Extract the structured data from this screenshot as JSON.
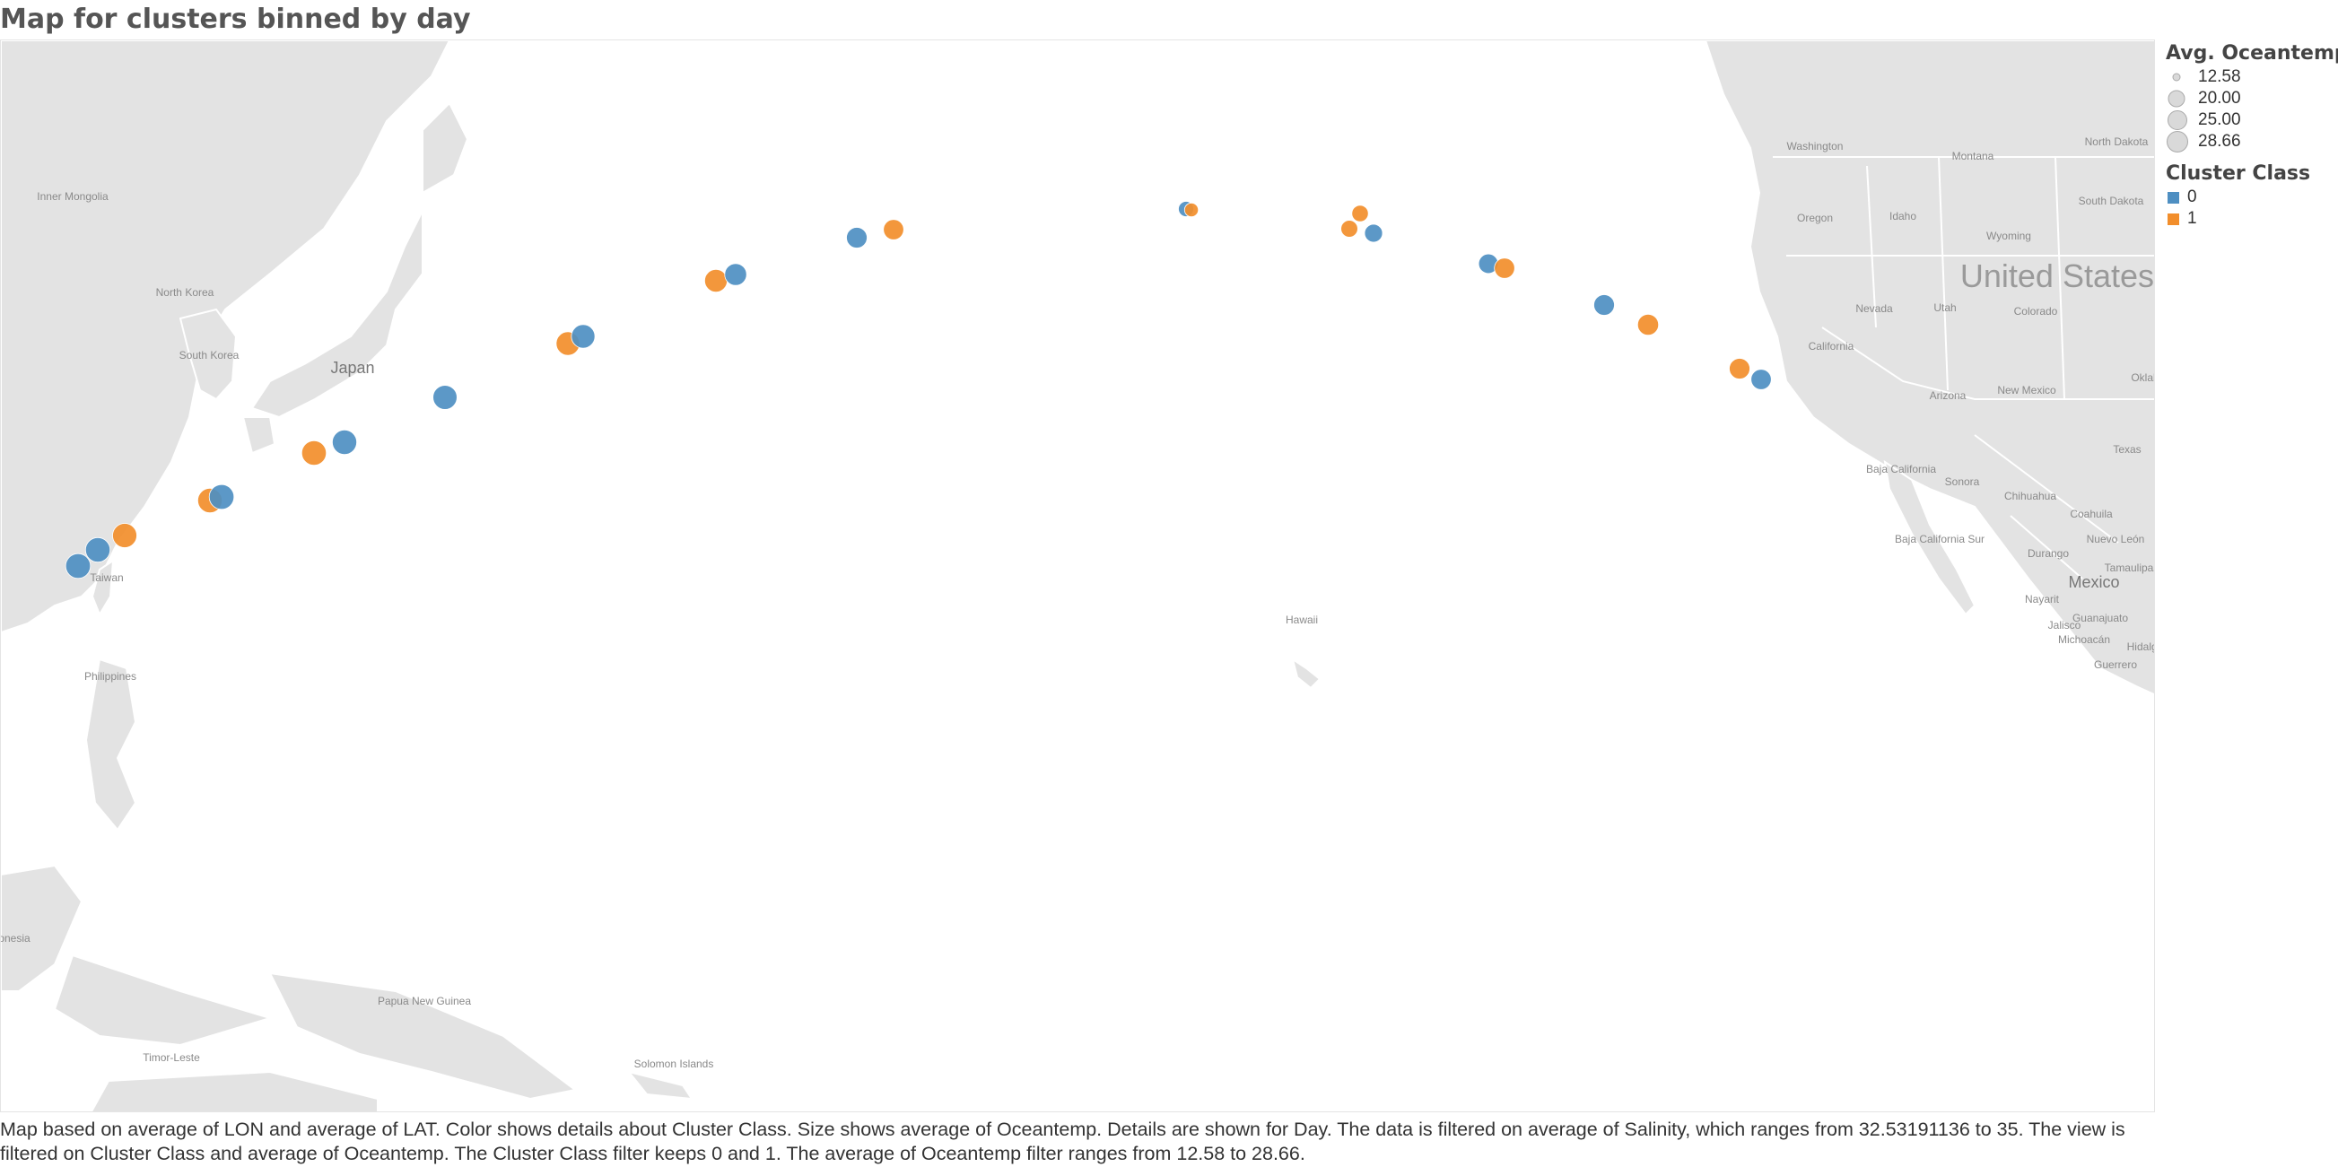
{
  "title": "Map for clusters binned by day",
  "legend": {
    "size_title": "Avg. Oceantemp",
    "size_items": [
      "12.58",
      "20.00",
      "25.00",
      "28.66"
    ],
    "color_title": "Cluster Class",
    "color_items": [
      {
        "label": "0",
        "color": "#4e8fc2"
      },
      {
        "label": "1",
        "color": "#f28e2b"
      }
    ]
  },
  "map_labels": [
    "Inner Mongolia",
    "North Korea",
    "South Korea",
    "Japan",
    "Taiwan",
    "Philippines",
    "Papua New Guinea",
    "Timor-Leste",
    "Solomon Islands",
    "onesia",
    "Hawaii",
    "Washington",
    "Montana",
    "North Dakota",
    "South Dakota",
    "Oregon",
    "Idaho",
    "Wyoming",
    "Nevada",
    "Utah",
    "Colorado",
    "California",
    "Arizona",
    "New Mexico",
    "Texas",
    "Oklah",
    "Baja California",
    "Sonora",
    "Chihuahua",
    "Coahuila",
    "Baja California Sur",
    "Durango",
    "Nuevo León",
    "Tamaulipas",
    "Nayarit",
    "Guanajuato",
    "Jalisco",
    "Michoacán",
    "Guerrero",
    "Hidalgo",
    "Mexico",
    "United States"
  ],
  "points": [
    {
      "cls": 0,
      "temp": 27.8
    },
    {
      "cls": 0,
      "temp": 27.5
    },
    {
      "cls": 1,
      "temp": 27.0
    },
    {
      "cls": 1,
      "temp": 27.3
    },
    {
      "cls": 0,
      "temp": 28.0
    },
    {
      "cls": 1,
      "temp": 27.5
    },
    {
      "cls": 0,
      "temp": 27.2
    },
    {
      "cls": 0,
      "temp": 26.5
    },
    {
      "cls": 1,
      "temp": 25.5
    },
    {
      "cls": 0,
      "temp": 25.5
    },
    {
      "cls": 1,
      "temp": 24.0
    },
    {
      "cls": 0,
      "temp": 23.0
    },
    {
      "cls": 0,
      "temp": 21.0
    },
    {
      "cls": 1,
      "temp": 20.5
    },
    {
      "cls": 0,
      "temp": 15.0
    },
    {
      "cls": 1,
      "temp": 14.0
    },
    {
      "cls": 1,
      "temp": 16.5
    },
    {
      "cls": 1,
      "temp": 16.0
    },
    {
      "cls": 0,
      "temp": 17.5
    },
    {
      "cls": 0,
      "temp": 19.5
    },
    {
      "cls": 1,
      "temp": 20.5
    },
    {
      "cls": 0,
      "temp": 21.0
    },
    {
      "cls": 1,
      "temp": 21.5
    },
    {
      "cls": 1,
      "temp": 21.0
    },
    {
      "cls": 0,
      "temp": 20.5
    }
  ],
  "caption": "Map based on average of LON and average of LAT.  Color shows details about Cluster Class.  Size shows average of Oceantemp.  Details are shown for Day. The data is filtered on average of Salinity, which ranges from 32.53191136 to 35. The view is filtered on Cluster Class and average of Oceantemp. The Cluster Class filter keeps 0 and 1. The average of Oceantemp filter ranges from 12.58 to 28.66."
}
